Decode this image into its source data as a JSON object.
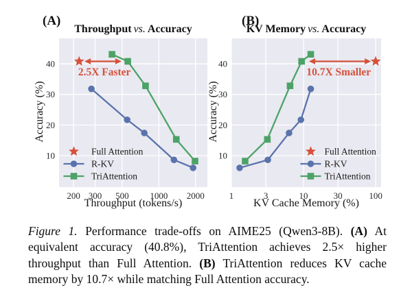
{
  "figure": {
    "panel_a_tag": "(A)",
    "panel_b_tag": "(B)"
  },
  "caption": {
    "segments": [
      {
        "text": "Figure 1.",
        "style": "italic"
      },
      {
        "text": " Performance trade-offs on AIME25 (Qwen3-8B). ",
        "style": "normal"
      },
      {
        "text": "(A)",
        "style": "bold"
      },
      {
        "text": " At equivalent accuracy (40.8%), TriAttention achieves 2.5× higher throughput than Full Attention. ",
        "style": "normal"
      },
      {
        "text": "(B)",
        "style": "bold"
      },
      {
        "text": " TriAttention reduces KV cache memory by 10.7× while matching Full Attention accuracy.",
        "style": "normal"
      }
    ]
  },
  "colors": {
    "plot_background": "#e9e9f1",
    "grid": "#ffffff",
    "full_attention": "#d6513a",
    "r_kv": "#5a73ab",
    "tri_attention": "#4da267",
    "annotation": "#d6513a",
    "tick_text": "#262626",
    "legend_text": "#1a1a1a"
  },
  "chart_data": [
    {
      "type": "line",
      "panel": "A",
      "title": {
        "bold_left": "Throughput",
        "vs": "vs.",
        "bold_right": "Accuracy"
      },
      "xlabel": "Throughput (tokens/s)",
      "ylabel": "Accuracy (%)",
      "xscale": "log",
      "xlim": [
        152,
        2500
      ],
      "ylim": [
        -0.3,
        48.3
      ],
      "xticks": [
        200,
        300,
        500,
        1000,
        2000
      ],
      "xtick_labels": [
        "200",
        "300",
        "500",
        "1000",
        "2000"
      ],
      "yticks": [
        10,
        20,
        30,
        40
      ],
      "grid": true,
      "legend_position": "lower-left",
      "legend_items": [
        "Full Attention",
        "R-KV",
        "TriAttention"
      ],
      "series": [
        {
          "name": "Full Attention",
          "marker": "star",
          "line": false,
          "color": "#d6513a",
          "points": [
            [
              222,
              40.8
            ]
          ]
        },
        {
          "name": "R-KV",
          "marker": "circle",
          "line": true,
          "color": "#5a73ab",
          "points": [
            [
              280,
              31.8
            ],
            [
              550,
              21.7
            ],
            [
              760,
              17.4
            ],
            [
              1330,
              8.6
            ],
            [
              1910,
              6.0
            ]
          ]
        },
        {
          "name": "TriAttention",
          "marker": "square",
          "line": true,
          "color": "#4da267",
          "points": [
            [
              413,
              43.1
            ],
            [
              556,
              40.8
            ],
            [
              778,
              32.8
            ],
            [
              1390,
              15.3
            ],
            [
              1980,
              8.2
            ]
          ]
        }
      ],
      "annotation": {
        "text": "2.5X Faster",
        "arrow_x1": 246,
        "arrow_x2": 494,
        "arrow_y": 40.8,
        "label_x": 218,
        "label_y": 36.2,
        "label_anchor": "start"
      }
    },
    {
      "type": "line",
      "panel": "B",
      "title": {
        "bold_left": "KV Memory",
        "vs": "vs.",
        "bold_right": "Accuracy"
      },
      "xlabel": "KV Cache Memory (%)",
      "ylabel": "Accuracy (%)",
      "xscale": "log",
      "xlim": [
        1,
        119
      ],
      "ylim": [
        -0.3,
        48.3
      ],
      "xticks": [
        1,
        3,
        10,
        30,
        100
      ],
      "xtick_labels": [
        "1",
        "3",
        "10",
        "30",
        "100"
      ],
      "yticks": [
        10,
        20,
        30,
        40
      ],
      "grid": true,
      "legend_position": "lower-right",
      "legend_items": [
        "Full Attention",
        "R-KV",
        "TriAttention"
      ],
      "series": [
        {
          "name": "Full Attention",
          "marker": "star",
          "line": false,
          "color": "#d6513a",
          "points": [
            [
              100,
              40.8
            ]
          ]
        },
        {
          "name": "R-KV",
          "marker": "circle",
          "line": true,
          "color": "#5a73ab",
          "points": [
            [
              1.3,
              6.0
            ],
            [
              3.2,
              8.6
            ],
            [
              6.3,
              17.4
            ],
            [
              9.2,
              21.7
            ],
            [
              12.6,
              31.8
            ]
          ]
        },
        {
          "name": "TriAttention",
          "marker": "square",
          "line": true,
          "color": "#4da267",
          "points": [
            [
              1.55,
              8.2
            ],
            [
              3.15,
              15.3
            ],
            [
              6.5,
              32.8
            ],
            [
              9.4,
              40.8
            ],
            [
              12.6,
              43.1
            ]
          ]
        }
      ],
      "annotation": {
        "text": "10.7X Smaller",
        "arrow_x1": 11.9,
        "arrow_x2": 86,
        "arrow_y": 40.8,
        "label_x": 86,
        "label_y": 36.2,
        "label_anchor": "end"
      }
    }
  ]
}
